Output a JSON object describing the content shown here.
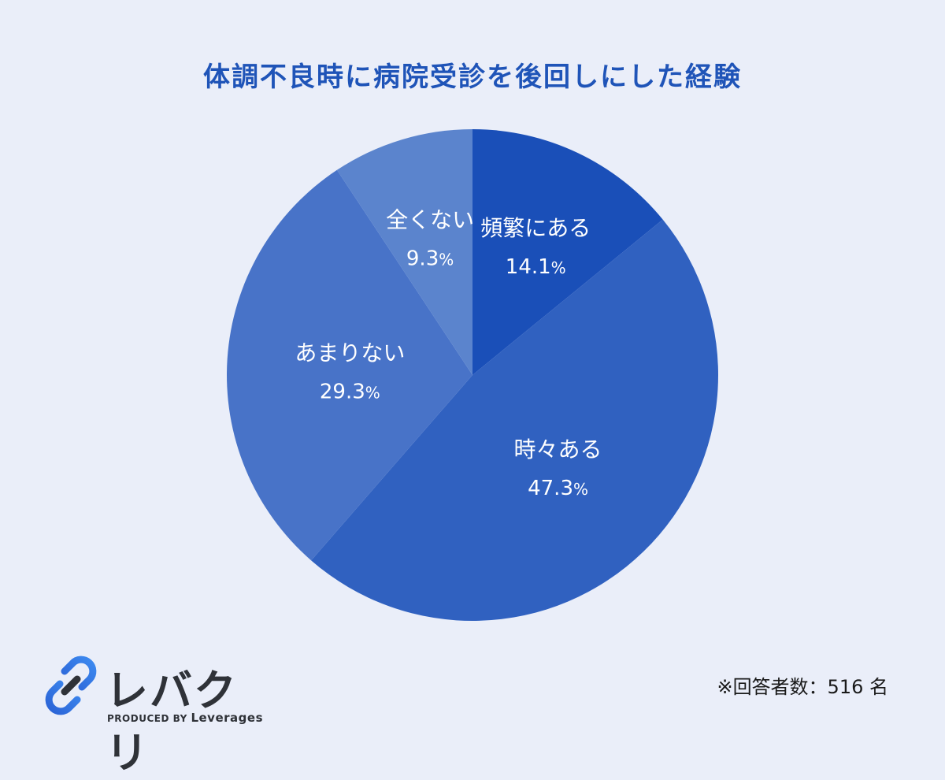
{
  "header": {
    "title": "体調不良時に病院受診を後回しにした経験"
  },
  "chart_data": {
    "type": "pie",
    "title": "体調不良時に病院受診を後回しにした経験",
    "unit": "%",
    "slices": [
      {
        "label": "頻繁にある",
        "value": 14.1,
        "color": "#1a4fb8"
      },
      {
        "label": "時々ある",
        "value": 47.3,
        "color": "#3061c0"
      },
      {
        "label": "あまりない",
        "value": 29.3,
        "color": "#4873c8"
      },
      {
        "label": "全くない",
        "value": 9.3,
        "color": "#5b84cd"
      }
    ]
  },
  "logo": {
    "name": "レバクリ",
    "produced_by": "PRODUCED BY",
    "brand": "Leverages"
  },
  "footer": {
    "respondents_note": "※回答者数：516 名"
  }
}
